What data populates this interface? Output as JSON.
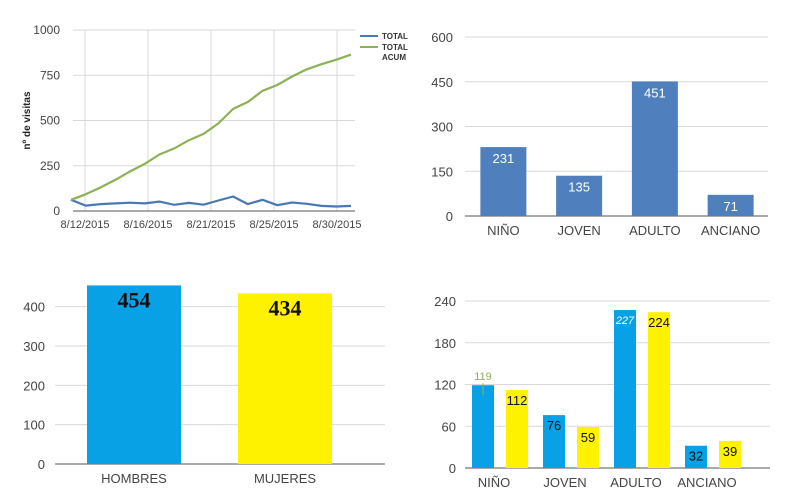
{
  "chart_data": [
    {
      "type": "line",
      "xlabel": "",
      "ylabel": "nº de visitas",
      "ylim": [
        0,
        1000
      ],
      "yticks": [
        0,
        250,
        500,
        750,
        1000
      ],
      "x_tick_labels": [
        "8/12/2015",
        "8/16/2015",
        "8/21/2015",
        "8/25/2015",
        "8/30/2015"
      ],
      "x": [
        "8/12/2015",
        "8/13/2015",
        "8/14/2015",
        "8/15/2015",
        "8/16/2015",
        "8/17/2015",
        "8/18/2015",
        "8/19/2015",
        "8/20/2015",
        "8/21/2015",
        "8/22/2015",
        "8/23/2015",
        "8/24/2015",
        "8/25/2015",
        "8/26/2015",
        "8/27/2015",
        "8/28/2015",
        "8/29/2015",
        "8/30/2015",
        "8/31/2015"
      ],
      "grid": true,
      "legend_position": "right",
      "series": [
        {
          "name": "TOTAL",
          "color": "#4a78b5",
          "values": [
            62,
            30,
            38,
            42,
            46,
            42,
            52,
            34,
            45,
            35,
            58,
            80,
            38,
            62,
            32,
            47,
            40,
            28,
            25,
            28
          ]
        },
        {
          "name": "TOTAL ACUM",
          "color": "#8db255",
          "values": [
            62,
            92,
            130,
            172,
            218,
            260,
            312,
            346,
            391,
            426,
            484,
            564,
            602,
            664,
            696,
            743,
            783,
            811,
            836,
            864
          ]
        }
      ]
    },
    {
      "type": "bar",
      "categories": [
        "NIÑO",
        "JOVEN",
        "ADULTO",
        "ANCIANO"
      ],
      "values": [
        231,
        135,
        451,
        71
      ],
      "ylim": [
        0,
        600
      ],
      "yticks": [
        0,
        150,
        300,
        450,
        600
      ],
      "color": "#4f80bd",
      "grid": true
    },
    {
      "type": "bar",
      "categories": [
        "HOMBRES",
        "MUJERES"
      ],
      "values": [
        454,
        434
      ],
      "colors": [
        "#09a1e5",
        "#fff200"
      ],
      "ylim": [
        0,
        450
      ],
      "yticks": [
        0,
        100,
        200,
        300,
        400
      ],
      "grid": true
    },
    {
      "type": "bar",
      "categories": [
        "NIÑO",
        "JOVEN",
        "ADULTO",
        "ANCIANO"
      ],
      "ylim": [
        0,
        240
      ],
      "yticks": [
        0,
        60,
        120,
        180,
        240
      ],
      "grid": true,
      "series": [
        {
          "values": [
            119,
            76,
            227,
            32
          ],
          "color": "#09a1e5"
        },
        {
          "values": [
            112,
            59,
            224,
            39
          ],
          "color": "#fff200"
        }
      ]
    }
  ]
}
